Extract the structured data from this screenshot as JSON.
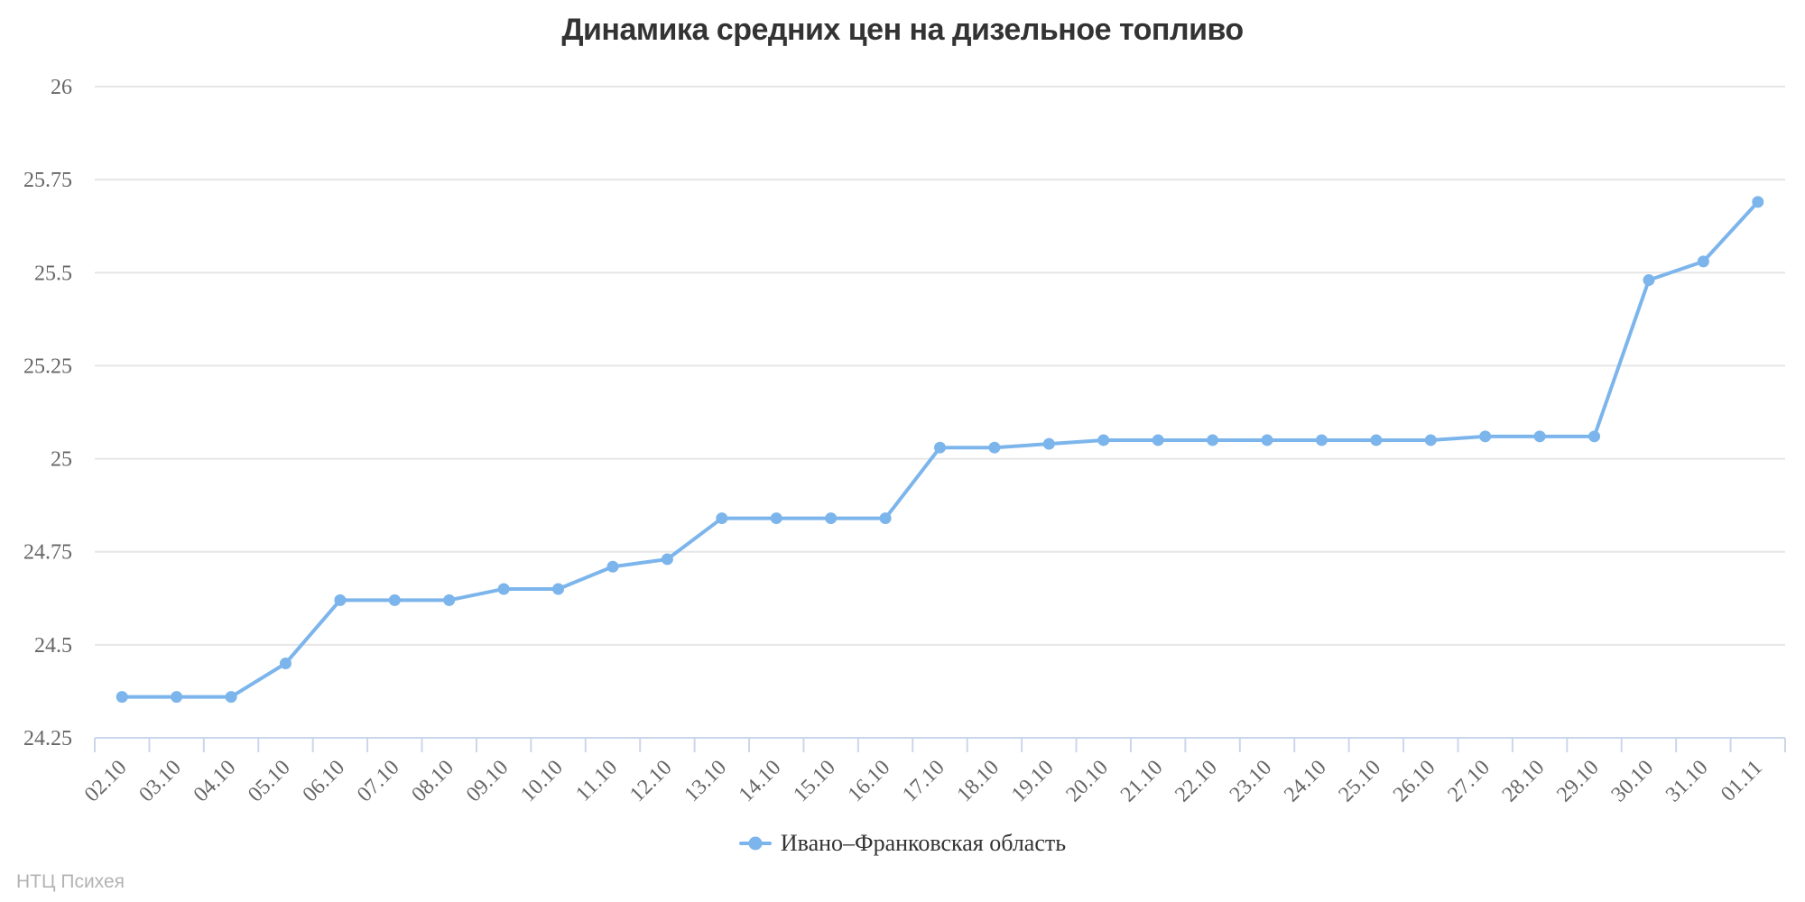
{
  "title": "Динамика средних цен на дизельное топливо",
  "attribution": "НТЦ Психея",
  "colors": {
    "series": "#7cb5ec",
    "gridline": "#e6e6e6",
    "axis_line": "#ccd6eb",
    "tick_label": "#666666",
    "title": "#333333",
    "legend_text": "#333333",
    "attribution_text": "#b3b3b3",
    "background": "#ffffff"
  },
  "chart_data": {
    "type": "line",
    "title": "Динамика средних цен на дизельное топливо",
    "xlabel": "",
    "ylabel": "",
    "ylim": [
      24.25,
      26
    ],
    "ytick_step": 0.25,
    "yticks": [
      "24.25",
      "24.5",
      "24.75",
      "25",
      "25.25",
      "25.5",
      "25.75",
      "26"
    ],
    "grid": true,
    "legend_position": "bottom",
    "categories": [
      "02.10",
      "03.10",
      "04.10",
      "05.10",
      "06.10",
      "07.10",
      "08.10",
      "09.10",
      "10.10",
      "11.10",
      "12.10",
      "13.10",
      "14.10",
      "15.10",
      "16.10",
      "17.10",
      "18.10",
      "19.10",
      "20.10",
      "21.10",
      "22.10",
      "23.10",
      "24.10",
      "25.10",
      "26.10",
      "27.10",
      "28.10",
      "29.10",
      "30.10",
      "31.10",
      "01.11"
    ],
    "series": [
      {
        "name": "Ивано–Франковская область",
        "color": "#7cb5ec",
        "values": [
          24.36,
          24.36,
          24.36,
          24.45,
          24.62,
          24.62,
          24.62,
          24.65,
          24.65,
          24.71,
          24.73,
          24.84,
          24.84,
          24.84,
          24.84,
          25.03,
          25.03,
          25.04,
          25.05,
          25.05,
          25.05,
          25.05,
          25.05,
          25.05,
          25.05,
          25.06,
          25.06,
          25.06,
          25.48,
          25.53,
          25.69
        ]
      }
    ]
  }
}
